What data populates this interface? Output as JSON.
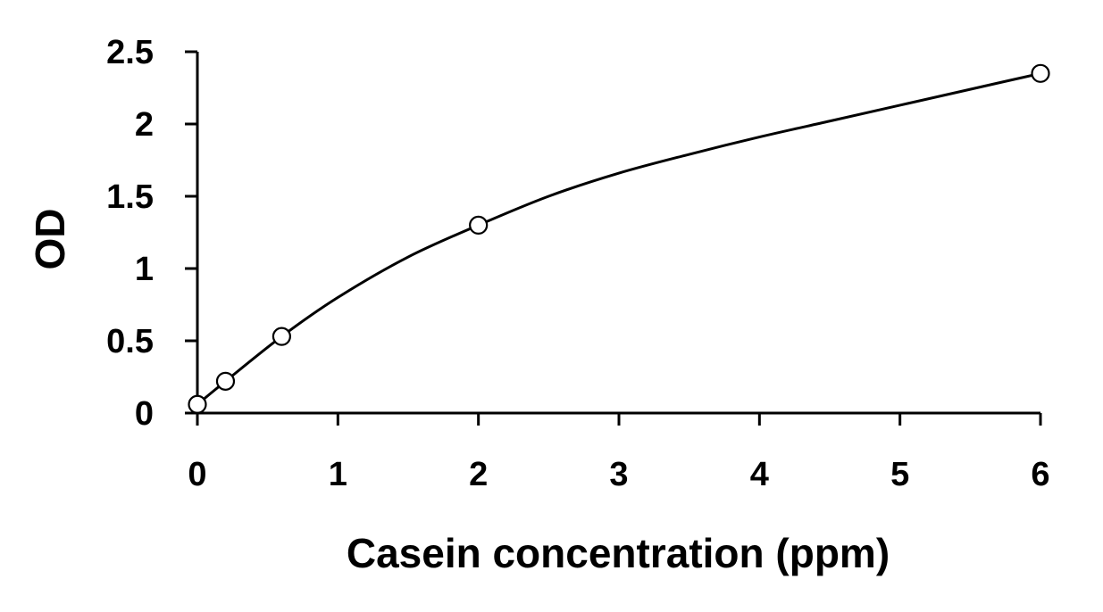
{
  "chart_data": {
    "type": "scatter",
    "title": "",
    "xlabel": "Casein concentration (ppm)",
    "ylabel": "OD",
    "xlim": [
      0,
      6
    ],
    "ylim": [
      0,
      2.5
    ],
    "x_ticks": [
      0,
      1,
      2,
      3,
      4,
      5,
      6
    ],
    "x_tick_labels": [
      "0",
      "1",
      "2",
      "3",
      "4",
      "5",
      "6"
    ],
    "y_ticks": [
      0,
      0.5,
      1,
      1.5,
      2,
      2.5
    ],
    "y_tick_labels": [
      "0",
      "0.5",
      "1",
      "1.5",
      "2",
      "2.5"
    ],
    "grid": false,
    "legend": false,
    "series": [
      {
        "marker": "open-circle",
        "x": [
          0,
          0.2,
          0.6,
          2,
          6
        ],
        "y": [
          0.06,
          0.22,
          0.53,
          1.3,
          2.35
        ]
      }
    ],
    "fit_curve": {
      "x": [
        0,
        0.2,
        0.6,
        1,
        1.5,
        2,
        2.5,
        3,
        3.5,
        4,
        4.5,
        5,
        5.5,
        6
      ],
      "y": [
        0.06,
        0.22,
        0.53,
        0.8,
        1.08,
        1.3,
        1.5,
        1.66,
        1.79,
        1.91,
        2.02,
        2.13,
        2.24,
        2.35
      ]
    },
    "colors": {
      "axis": "#000000",
      "marker": "#000000",
      "curve": "#000000"
    }
  }
}
